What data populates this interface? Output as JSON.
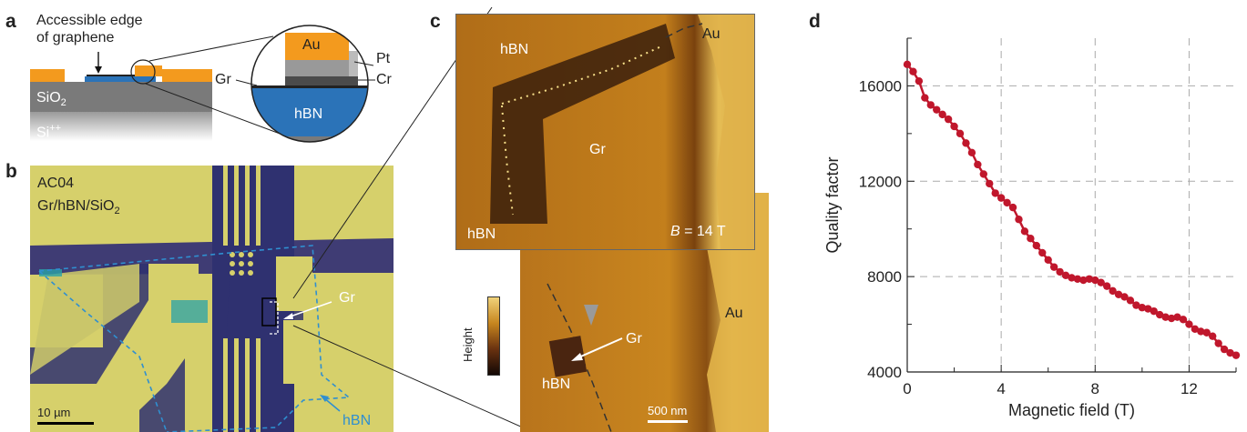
{
  "panel_labels": {
    "a": "a",
    "b": "b",
    "c": "c",
    "d": "d"
  },
  "panel_a": {
    "edge_line1": "Accessible edge",
    "edge_line2": "of graphene",
    "layers": {
      "sio2": "SiO",
      "sio2_sub": "2",
      "si": "Si",
      "si_sup": "++"
    },
    "inset": {
      "au": "Au",
      "pt": "Pt",
      "cr": "Cr",
      "gr": "Gr",
      "hbn": "hBN"
    },
    "colors": {
      "gold": "#F39A1E",
      "hbn_blue": "#2B73B8",
      "sio2": "#7A7A7A",
      "si": "#9C9C9C"
    }
  },
  "panel_b": {
    "device": "AC04",
    "stack": "Gr/hBN/SiO",
    "stack_sub": "2",
    "gr_label": "Gr",
    "hbn_label": "hBN",
    "scalebar": "10 µm",
    "colors": {
      "gold": "#D8D06A",
      "substrate": "#35377A",
      "hbn_outline": "#2F8FD0"
    }
  },
  "panel_c": {
    "top": {
      "hbn1": "hBN",
      "au": "Au",
      "gr": "Gr",
      "hbn2": "hBN",
      "field_italic": "B",
      "field_rest": " = 14 T"
    },
    "bottom": {
      "au": "Au",
      "gr": "Gr",
      "hbn": "hBN",
      "scalebar": "500 nm"
    },
    "colorbar_label": "Height"
  },
  "chart_data": {
    "type": "line",
    "xlabel": "Magnetic field (T)",
    "ylabel": "Quality factor",
    "xlim": [
      0,
      14
    ],
    "ylim": [
      4000,
      18000
    ],
    "xticks": [
      0,
      4,
      8,
      12
    ],
    "yticks": [
      4000,
      8000,
      12000,
      16000
    ],
    "grid": true,
    "color": "#C0172C",
    "x": [
      0.0,
      0.25,
      0.5,
      0.75,
      1.0,
      1.25,
      1.5,
      1.75,
      2.0,
      2.25,
      2.5,
      2.75,
      3.0,
      3.25,
      3.5,
      3.75,
      4.0,
      4.25,
      4.5,
      4.75,
      5.0,
      5.25,
      5.5,
      5.75,
      6.0,
      6.25,
      6.5,
      6.75,
      7.0,
      7.25,
      7.5,
      7.75,
      8.0,
      8.25,
      8.5,
      8.75,
      9.0,
      9.25,
      9.5,
      9.75,
      10.0,
      10.25,
      10.5,
      10.75,
      11.0,
      11.25,
      11.5,
      11.75,
      12.0,
      12.25,
      12.5,
      12.75,
      13.0,
      13.25,
      13.5,
      13.75,
      14.0
    ],
    "y": [
      16900,
      16600,
      16200,
      15500,
      15200,
      15000,
      14800,
      14600,
      14300,
      14000,
      13600,
      13200,
      12700,
      12300,
      11900,
      11500,
      11300,
      11100,
      10900,
      10400,
      9900,
      9600,
      9300,
      9000,
      8700,
      8400,
      8200,
      8050,
      7950,
      7900,
      7850,
      7900,
      7850,
      7750,
      7600,
      7400,
      7250,
      7150,
      7000,
      6800,
      6700,
      6650,
      6550,
      6400,
      6300,
      6250,
      6300,
      6200,
      6000,
      5800,
      5700,
      5650,
      5500,
      5200,
      4950,
      4800,
      4700
    ]
  }
}
